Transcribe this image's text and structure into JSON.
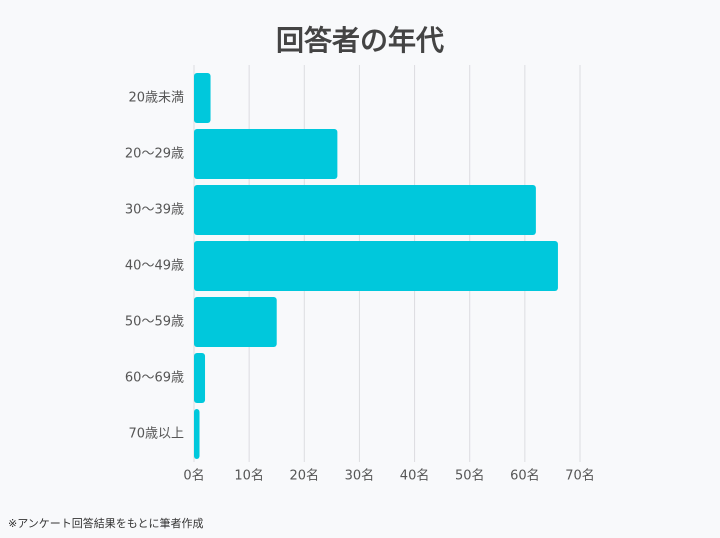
{
  "chart_data": {
    "type": "bar",
    "orientation": "horizontal",
    "title": "回答者の年代",
    "categories": [
      "20歳未満",
      "20〜29歳",
      "30〜39歳",
      "40〜49歳",
      "50〜59歳",
      "60〜69歳",
      "70歳以上"
    ],
    "values": [
      3,
      26,
      62,
      66,
      15,
      2,
      1
    ],
    "color": "#00c8dc",
    "xlim": [
      0,
      70
    ],
    "xticks": [
      {
        "value": 0,
        "label": "0名"
      },
      {
        "value": 10,
        "label": "10名"
      },
      {
        "value": 20,
        "label": "20名"
      },
      {
        "value": 30,
        "label": "30名"
      },
      {
        "value": 40,
        "label": "40名"
      },
      {
        "value": 50,
        "label": "50名"
      },
      {
        "value": 60,
        "label": "60名"
      },
      {
        "value": 70,
        "label": "70名"
      }
    ],
    "grid": true,
    "note": "※アンケート回答結果をもとに筆者作成"
  }
}
